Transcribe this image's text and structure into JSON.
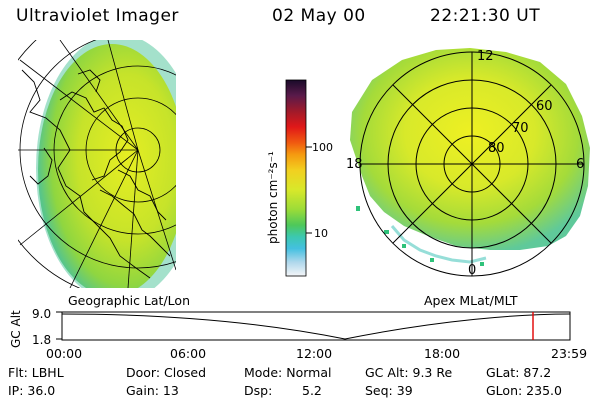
{
  "header": {
    "instrument": "Ultraviolet Imager",
    "date": "02 May 00",
    "time": "22:21:30 UT"
  },
  "left_panel": {
    "caption": "Geographic Lat/Lon"
  },
  "right_panel": {
    "caption": "Apex MLat/MLT",
    "ring_labels": [
      "60",
      "70",
      "80"
    ],
    "mlt_labels": {
      "top": "12",
      "left": "18",
      "right": "6",
      "bottom": "0"
    }
  },
  "colorbar": {
    "unit": "photon cm⁻²s⁻¹",
    "tick_labels": [
      "100",
      "10"
    ],
    "scale": "log"
  },
  "altitude_plot": {
    "ylabel": "GC Alt",
    "y_ticks": [
      "9.0",
      "1.8"
    ],
    "x_ticks": [
      "00:00",
      "06:00",
      "12:00",
      "18:00",
      "23:59"
    ],
    "marker_color": "#e00000"
  },
  "status": {
    "flt": "Flt: LBHL",
    "door": "Door: Closed",
    "mode": "Mode: Normal",
    "gc_alt": "GC Alt: 9.3 Re",
    "glat": "GLat: 87.2",
    "ip": "IP: 36.0",
    "gain": "Gain: 13",
    "dsp_label": "Dsp:",
    "dsp_value": "5.2",
    "seq": "Seq: 39",
    "glon": "GLon: 235.0"
  }
}
